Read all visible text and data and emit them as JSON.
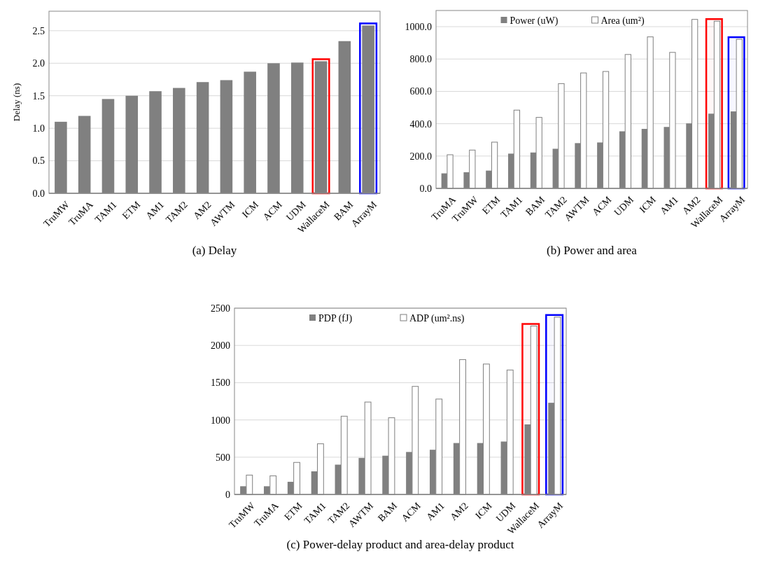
{
  "chart_data": [
    {
      "type": "bar",
      "title": "(a)  Delay",
      "ylabel": "Delay (ns)",
      "categories": [
        "TruMW",
        "TruMA",
        "TAM1",
        "ETM",
        "AM1",
        "TAM2",
        "AM2",
        "AWTM",
        "ICM",
        "ACM",
        "UDM",
        "WallaceM",
        "BAM",
        "ArrayM"
      ],
      "series": [
        {
          "color": "#808080",
          "values": [
            1.1,
            1.19,
            1.45,
            1.5,
            1.57,
            1.62,
            1.71,
            1.74,
            1.87,
            2.0,
            2.01,
            2.03,
            2.34,
            2.58
          ]
        }
      ],
      "ylim": [
        0,
        2.8
      ],
      "yticks": [
        {
          "value": 0,
          "label": "0.0"
        },
        {
          "value": 0.5,
          "label": "0.5"
        },
        {
          "value": 1,
          "label": "1.0"
        },
        {
          "value": 1.5,
          "label": "1.5"
        },
        {
          "value": 2,
          "label": "2.0"
        },
        {
          "value": 2.5,
          "label": "2.5"
        }
      ],
      "grid": "y",
      "bands": [
        {
          "axis": "x",
          "from": "WallaceM",
          "to": "WallaceM",
          "color": "#ff0000"
        },
        {
          "axis": "x",
          "from": "ArrayM",
          "to": "ArrayM",
          "color": "#0000ff"
        }
      ]
    },
    {
      "type": "bar",
      "title": "(b)  Power and area",
      "categories": [
        "TruMA",
        "TruMW",
        "ETM",
        "TAM1",
        "BAM",
        "TAM2",
        "AWTM",
        "ACM",
        "UDM",
        "ICM",
        "AM1",
        "AM2",
        "WallaceM",
        "ArrayM"
      ],
      "series": [
        {
          "name": "Power (uW)",
          "color": "#808080",
          "values": [
            93,
            100,
            110,
            215,
            222,
            245,
            280,
            284,
            353,
            368,
            380,
            402,
            462,
            476
          ]
        },
        {
          "name": "Area (um²)",
          "color": "#ffffff",
          "values": [
            208,
            237,
            286,
            484,
            439,
            648,
            714,
            723,
            828,
            937,
            841,
            1045,
            1034,
            922
          ]
        }
      ],
      "ylim": [
        0,
        1100
      ],
      "yticks": [
        {
          "value": 0,
          "label": "0.0"
        },
        {
          "value": 200,
          "label": "200.0"
        },
        {
          "value": 400,
          "label": "400.0"
        },
        {
          "value": 600,
          "label": "600.0"
        },
        {
          "value": 800,
          "label": "800.0"
        },
        {
          "value": 1000,
          "label": "1000.0"
        }
      ],
      "grid": "y",
      "legend": "top",
      "bands": [
        {
          "axis": "x",
          "from": "WallaceM",
          "to": "WallaceM",
          "color": "#ff0000"
        },
        {
          "axis": "x",
          "from": "ArrayM",
          "to": "ArrayM",
          "color": "#0000ff"
        }
      ]
    },
    {
      "type": "bar",
      "title": "(c)  Power-delay product and area-delay product",
      "categories": [
        "TruMW",
        "TruMA",
        "ETM",
        "TAM1",
        "TAM2",
        "AWTM",
        "BAM",
        "ACM",
        "AM1",
        "AM2",
        "ICM",
        "UDM",
        "WallaceM",
        "ArrayM"
      ],
      "series": [
        {
          "name": "PDP (fJ)",
          "color": "#808080",
          "values": [
            110,
            110,
            170,
            310,
            400,
            490,
            520,
            570,
            600,
            690,
            690,
            710,
            940,
            1230
          ]
        },
        {
          "name": "ADP (um².ns)",
          "color": "#ffffff",
          "values": [
            260,
            250,
            430,
            680,
            1050,
            1240,
            1030,
            1450,
            1280,
            1810,
            1750,
            1670,
            2260,
            2380
          ]
        }
      ],
      "ylim": [
        0,
        2500
      ],
      "yticks": [
        0,
        500,
        1000,
        1500,
        2000,
        2500
      ],
      "grid": "y",
      "legend": "top",
      "bands": [
        {
          "axis": "x",
          "from": "WallaceM",
          "to": "WallaceM",
          "color": "#ff0000"
        },
        {
          "axis": "x",
          "from": "ArrayM",
          "to": "ArrayM",
          "color": "#0000ff"
        }
      ]
    }
  ]
}
